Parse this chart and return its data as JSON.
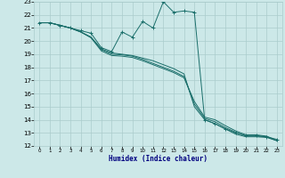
{
  "title": "",
  "xlabel": "Humidex (Indice chaleur)",
  "ylabel": "",
  "bg_color": "#cce8e8",
  "grid_color": "#aacccc",
  "line_color": "#1a6e6a",
  "xlim": [
    -0.5,
    23.5
  ],
  "ylim": [
    12,
    23
  ],
  "xticks": [
    0,
    1,
    2,
    3,
    4,
    5,
    6,
    7,
    8,
    9,
    10,
    11,
    12,
    13,
    14,
    15,
    16,
    17,
    18,
    19,
    20,
    21,
    22,
    23
  ],
  "yticks": [
    12,
    13,
    14,
    15,
    16,
    17,
    18,
    19,
    20,
    21,
    22,
    23
  ],
  "lines": [
    {
      "x": [
        0,
        1,
        2,
        3,
        4,
        5,
        6,
        7,
        8,
        9,
        10,
        11,
        12,
        13,
        14,
        15,
        16,
        17,
        18,
        19,
        20,
        21,
        22,
        23
      ],
      "y": [
        21.4,
        21.4,
        21.2,
        21.0,
        20.8,
        20.6,
        19.5,
        19.2,
        20.7,
        20.3,
        21.5,
        21.0,
        23.0,
        22.2,
        22.3,
        22.2,
        14.0,
        13.7,
        13.3,
        13.0,
        12.8,
        12.8,
        12.7,
        12.5
      ],
      "marker": "+"
    },
    {
      "x": [
        0,
        1,
        2,
        3,
        4,
        5,
        6,
        7,
        8,
        9,
        10,
        11,
        12,
        13,
        14,
        15,
        16,
        17,
        18,
        19,
        20,
        21,
        22,
        23
      ],
      "y": [
        21.4,
        21.4,
        21.2,
        21.0,
        20.7,
        20.3,
        19.4,
        19.1,
        19.0,
        18.9,
        18.7,
        18.5,
        18.2,
        17.9,
        17.5,
        15.0,
        14.0,
        13.7,
        13.3,
        12.9,
        12.7,
        12.7,
        12.65,
        12.4
      ],
      "marker": null
    },
    {
      "x": [
        0,
        1,
        2,
        3,
        4,
        5,
        6,
        7,
        8,
        9,
        10,
        11,
        12,
        13,
        14,
        15,
        16,
        17,
        18,
        19,
        20,
        21,
        22,
        23
      ],
      "y": [
        21.4,
        21.4,
        21.2,
        21.0,
        20.7,
        20.3,
        19.35,
        19.0,
        18.95,
        18.85,
        18.6,
        18.3,
        18.0,
        17.7,
        17.3,
        15.2,
        14.1,
        13.85,
        13.4,
        13.05,
        12.75,
        12.75,
        12.7,
        12.4
      ],
      "marker": null
    },
    {
      "x": [
        0,
        1,
        2,
        3,
        4,
        5,
        6,
        7,
        8,
        9,
        10,
        11,
        12,
        13,
        14,
        15,
        16,
        17,
        18,
        19,
        20,
        21,
        22,
        23
      ],
      "y": [
        21.4,
        21.4,
        21.2,
        21.0,
        20.7,
        20.25,
        19.25,
        18.9,
        18.85,
        18.75,
        18.5,
        18.2,
        17.9,
        17.6,
        17.2,
        15.4,
        14.2,
        14.0,
        13.55,
        13.15,
        12.85,
        12.85,
        12.75,
        12.4
      ],
      "marker": null
    }
  ]
}
